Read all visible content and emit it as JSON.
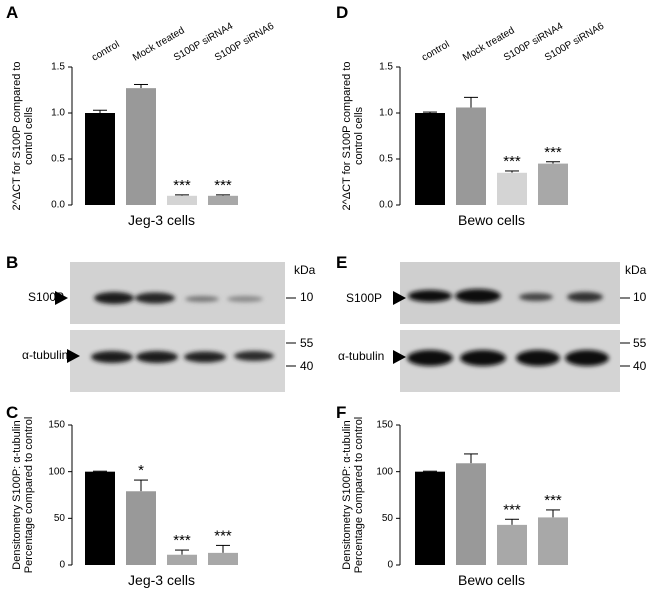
{
  "chart_data": [
    {
      "type": "bar",
      "panel": "A",
      "categories": [
        "control",
        "Mock treated",
        "S100P siRNA4",
        "S100P siRNA6"
      ],
      "values": [
        1.0,
        1.27,
        0.1,
        0.1
      ],
      "errors": [
        0.03,
        0.04,
        0.01,
        0.01
      ],
      "colors": [
        "#000000",
        "#999999",
        "#d4d4d4",
        "#a8a8a8"
      ],
      "annotations": [
        null,
        null,
        "***",
        "***"
      ],
      "ylim": [
        0,
        1.5
      ],
      "yticks": [
        {
          "value": 0,
          "label": "0.0"
        },
        {
          "value": 0.5,
          "label": "0.5"
        },
        {
          "value": 1,
          "label": "1.0"
        },
        {
          "value": 1.5,
          "label": "1.5"
        }
      ],
      "xlabel": "Jeg-3 cells",
      "ylabel": [
        "2^ΔCT for S100P compared to",
        "control cells"
      ]
    },
    {
      "type": "bar",
      "panel": "D",
      "categories": [
        "control",
        "Mock treated",
        "S100P siRNA4",
        "S100P siRNA6"
      ],
      "values": [
        1.0,
        1.06,
        0.35,
        0.45
      ],
      "errors": [
        0.01,
        0.11,
        0.02,
        0.02
      ],
      "colors": [
        "#000000",
        "#999999",
        "#d4d4d4",
        "#a8a8a8"
      ],
      "annotations": [
        null,
        null,
        "***",
        "***"
      ],
      "ylim": [
        0,
        1.5
      ],
      "yticks": [
        {
          "value": 0,
          "label": "0.0"
        },
        {
          "value": 0.5,
          "label": "0.5"
        },
        {
          "value": 1,
          "label": "1.0"
        },
        {
          "value": 1.5,
          "label": "1.5"
        }
      ],
      "xlabel": "Bewo cells",
      "ylabel": [
        "2^ΔCT for S100P compared to",
        "control cells"
      ]
    },
    {
      "type": "bar",
      "panel": "C",
      "categories": [
        null,
        null,
        null,
        null
      ],
      "values": [
        100,
        79,
        11,
        13
      ],
      "errors": [
        0.5,
        12,
        5,
        8
      ],
      "colors": [
        "#000000",
        "#999999",
        "#a8a8a8",
        "#a8a8a8"
      ],
      "annotations": [
        null,
        "*",
        "***",
        "***"
      ],
      "ylim": [
        0,
        150
      ],
      "yticks": [
        0,
        50,
        100,
        150
      ],
      "xlabel": "Jeg-3 cells",
      "ylabel": [
        "Densitometry S100P: α-tubulin",
        "Percentage compared to control"
      ]
    },
    {
      "type": "bar",
      "panel": "F",
      "categories": [
        null,
        null,
        null,
        null
      ],
      "values": [
        100,
        109,
        43,
        51
      ],
      "errors": [
        0.5,
        10,
        6,
        8
      ],
      "colors": [
        "#000000",
        "#999999",
        "#a8a8a8",
        "#a8a8a8"
      ],
      "annotations": [
        null,
        null,
        "***",
        "***"
      ],
      "ylim": [
        0,
        150
      ],
      "yticks": [
        0,
        50,
        100,
        150
      ],
      "xlabel": "Bewo cells",
      "ylabel": [
        "Densitometry S100P: α-tubulin",
        "Percentage compared to control"
      ]
    }
  ],
  "blots": [
    {
      "panel": "B",
      "unit": "kDa",
      "bands": [
        "S100P",
        "α-tubulin"
      ],
      "markers": [
        "10",
        "55",
        "40"
      ]
    },
    {
      "panel": "E",
      "unit": "kDa",
      "bands": [
        "S100P",
        "α-tubulin"
      ],
      "markers": [
        "10",
        "55",
        "40"
      ]
    }
  ]
}
